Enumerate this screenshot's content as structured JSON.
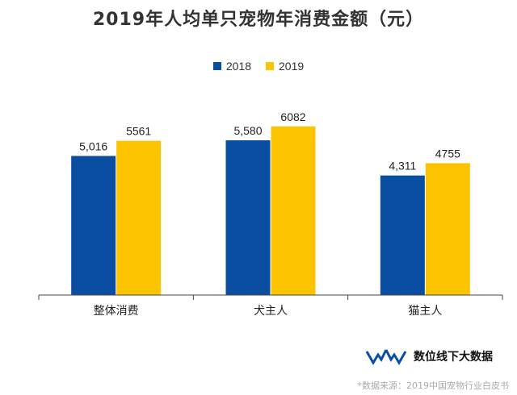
{
  "chart_data": {
    "type": "bar",
    "title": "2019年人均单只宠物年消费金额（元）",
    "categories": [
      "整体消费",
      "犬主人",
      "猫主人"
    ],
    "series": [
      {
        "name": "2018",
        "values": [
          5016,
          5580,
          4311
        ],
        "labels": [
          "5,016",
          "5,580",
          "4,311"
        ],
        "color": "#0a4ea2"
      },
      {
        "name": "2019",
        "values": [
          5561,
          6082,
          4755
        ],
        "labels": [
          "5561",
          "6082",
          "4755"
        ],
        "color": "#fcc300"
      }
    ],
    "ylim": [
      0,
      7500
    ],
    "grid": false,
    "legend": "top-center"
  },
  "brand": {
    "name": "数位线下大数据",
    "icon": "wave-logo-icon"
  },
  "source": "*数据来源：2019中国宠物行业白皮书"
}
